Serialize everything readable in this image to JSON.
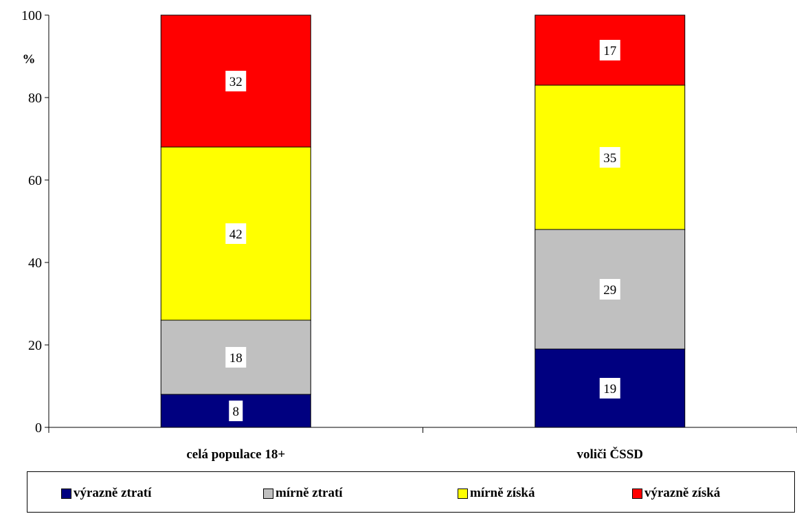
{
  "chart_data": {
    "type": "bar",
    "stacked": true,
    "categories": [
      "celá populace 18+",
      "voliči ČSSD"
    ],
    "ylabel": "%",
    "ylim": [
      0,
      100
    ],
    "yticks": [
      0,
      20,
      40,
      60,
      80,
      100
    ],
    "series": [
      {
        "name": "výrazně ztratí",
        "color": "#000080",
        "values": [
          8,
          19
        ]
      },
      {
        "name": "mírně ztratí",
        "color": "#c0c0c0",
        "values": [
          18,
          29
        ]
      },
      {
        "name": "mírně získá",
        "color": "#ffff00",
        "values": [
          42,
          35
        ]
      },
      {
        "name": "výrazně získá",
        "color": "#ff0000",
        "values": [
          32,
          17
        ]
      }
    ],
    "legend_position": "bottom",
    "grid": false
  }
}
